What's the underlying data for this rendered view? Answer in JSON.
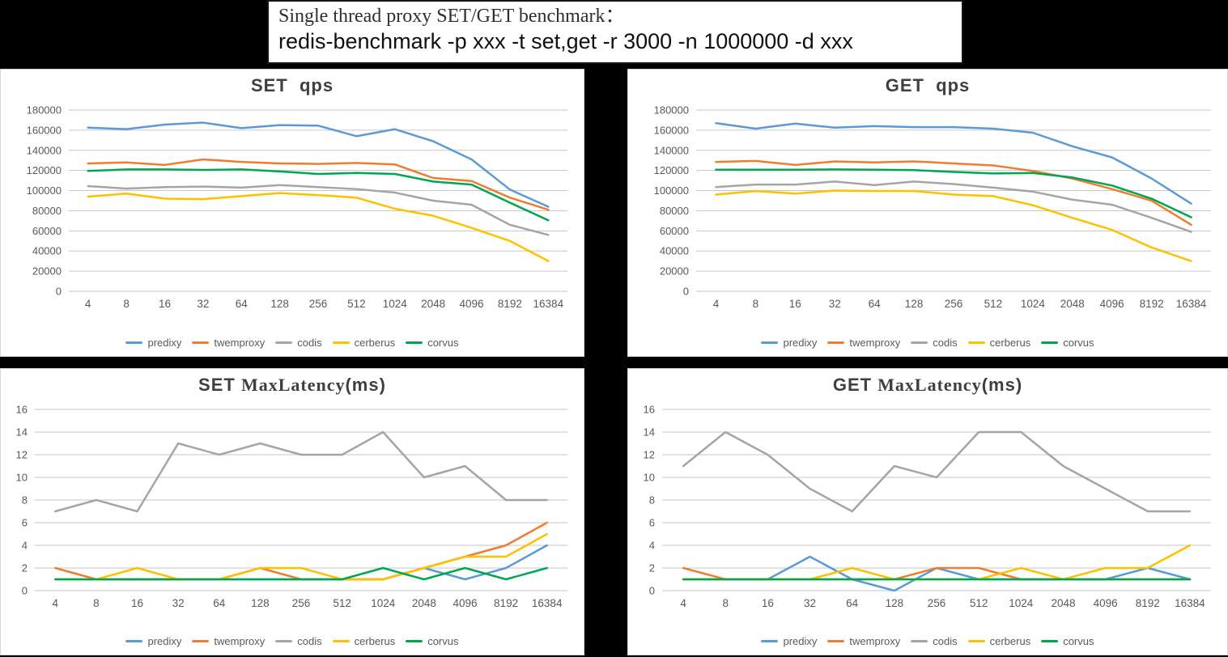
{
  "header": {
    "line1": "Single thread proxy SET/GET benchmark：",
    "line2": "redis-benchmark -p xxx -t set,get -r 3000 -n 1000000 -d xxx"
  },
  "colors": {
    "predixy": "#5B9BD5",
    "twemproxy": "#ED7D31",
    "codis": "#A5A5A5",
    "cerberus": "#FFC000",
    "corvus": "#00A651"
  },
  "style": {
    "background": "#000000",
    "panel_background": "#FFFFFF",
    "gridline_color": "#C6C6C6",
    "axis_text_color": "#595959",
    "title_color": "#3F3F3F"
  },
  "legend": [
    "predixy",
    "twemproxy",
    "codis",
    "cerberus",
    "corvus"
  ],
  "chart_data": [
    {
      "id": "set-qps",
      "type": "line",
      "title": "SET  qps",
      "title_segments": [
        {
          "text": "SET  qps",
          "font": "sans"
        }
      ],
      "xlabel": "",
      "ylabel": "",
      "ylim": [
        0,
        180000
      ],
      "ytick_step": 20000,
      "grid": true,
      "legend_position": "bottom",
      "categories": [
        "4",
        "8",
        "16",
        "32",
        "64",
        "128",
        "256",
        "512",
        "1024",
        "2048",
        "4096",
        "8192",
        "16384"
      ],
      "series": [
        {
          "name": "predixy",
          "values": [
            162500,
            161000,
            165500,
            167500,
            162000,
            165000,
            164500,
            154000,
            161000,
            149000,
            131000,
            101000,
            84000
          ]
        },
        {
          "name": "twemproxy",
          "values": [
            127000,
            128000,
            125500,
            131000,
            128500,
            127000,
            126500,
            127500,
            126000,
            112500,
            109500,
            93000,
            81000
          ]
        },
        {
          "name": "codis",
          "values": [
            104500,
            102000,
            103500,
            104000,
            103000,
            105500,
            103500,
            101500,
            98000,
            90000,
            86000,
            66000,
            56000
          ]
        },
        {
          "name": "cerberus",
          "values": [
            94000,
            97000,
            92000,
            91500,
            94500,
            97500,
            95500,
            93000,
            82000,
            75000,
            63000,
            50000,
            30000
          ]
        },
        {
          "name": "corvus",
          "values": [
            119500,
            121000,
            121000,
            120500,
            121000,
            119000,
            116500,
            117500,
            116500,
            109000,
            106000,
            88000,
            70500
          ]
        }
      ]
    },
    {
      "id": "get-qps",
      "type": "line",
      "title": "GET  qps",
      "title_segments": [
        {
          "text": "GET  qps",
          "font": "sans"
        }
      ],
      "xlabel": "",
      "ylabel": "",
      "ylim": [
        0,
        180000
      ],
      "ytick_step": 20000,
      "grid": true,
      "legend_position": "bottom",
      "categories": [
        "4",
        "8",
        "16",
        "32",
        "64",
        "128",
        "256",
        "512",
        "1024",
        "2048",
        "4096",
        "8192",
        "16384"
      ],
      "series": [
        {
          "name": "predixy",
          "values": [
            167000,
            161500,
            166500,
            162500,
            164000,
            163000,
            163000,
            161500,
            157500,
            144000,
            133000,
            112000,
            87000
          ]
        },
        {
          "name": "twemproxy",
          "values": [
            128500,
            129500,
            125500,
            129000,
            128000,
            129000,
            127000,
            125000,
            119500,
            112000,
            101500,
            90000,
            66000
          ]
        },
        {
          "name": "codis",
          "values": [
            103500,
            106000,
            106000,
            109000,
            105500,
            109000,
            106500,
            103000,
            99000,
            91000,
            86000,
            73000,
            59000
          ]
        },
        {
          "name": "cerberus",
          "values": [
            96000,
            99500,
            97000,
            100000,
            99500,
            99500,
            96000,
            94500,
            85500,
            73000,
            61000,
            43500,
            30000
          ]
        },
        {
          "name": "corvus",
          "values": [
            120700,
            120700,
            120700,
            121000,
            120700,
            120300,
            118500,
            117000,
            117500,
            113000,
            105000,
            92000,
            73500
          ]
        }
      ]
    },
    {
      "id": "set-maxlatency",
      "type": "line",
      "title": "SET MaxLatency(ms)",
      "title_segments": [
        {
          "text": "SET ",
          "font": "sans"
        },
        {
          "text": "MaxLatency",
          "font": "serif"
        },
        {
          "text": "(ms)",
          "font": "sans"
        }
      ],
      "xlabel": "",
      "ylabel": "",
      "ylim": [
        0,
        16
      ],
      "ytick_step": 2,
      "grid": true,
      "legend_position": "bottom",
      "categories": [
        "4",
        "8",
        "16",
        "32",
        "64",
        "128",
        "256",
        "512",
        "1024",
        "2048",
        "4096",
        "8192",
        "16384"
      ],
      "series": [
        {
          "name": "predixy",
          "values": [
            1,
            1,
            1,
            1,
            1,
            1,
            1,
            1,
            1,
            2,
            1,
            2,
            4
          ]
        },
        {
          "name": "twemproxy",
          "values": [
            2,
            1,
            1,
            1,
            1,
            2,
            1,
            1,
            1,
            2,
            3,
            4,
            6
          ]
        },
        {
          "name": "codis",
          "values": [
            7,
            8,
            7,
            13,
            12,
            13,
            12,
            12,
            14,
            10,
            11,
            8,
            8
          ]
        },
        {
          "name": "cerberus",
          "values": [
            1,
            1,
            2,
            1,
            1,
            2,
            2,
            1,
            1,
            2,
            3,
            3,
            5
          ]
        },
        {
          "name": "corvus",
          "values": [
            1,
            1,
            1,
            1,
            1,
            1,
            1,
            1,
            2,
            1,
            2,
            1,
            2
          ]
        }
      ]
    },
    {
      "id": "get-maxlatency",
      "type": "line",
      "title": "GET MaxLatency(ms)",
      "title_segments": [
        {
          "text": "GET ",
          "font": "sans"
        },
        {
          "text": "MaxLatency",
          "font": "serif"
        },
        {
          "text": "(ms)",
          "font": "sans"
        }
      ],
      "xlabel": "",
      "ylabel": "",
      "ylim": [
        0,
        16
      ],
      "ytick_step": 2,
      "grid": true,
      "legend_position": "bottom",
      "categories": [
        "4",
        "8",
        "16",
        "32",
        "64",
        "128",
        "256",
        "512",
        "1024",
        "2048",
        "4096",
        "8192",
        "16384"
      ],
      "series": [
        {
          "name": "predixy",
          "values": [
            1,
            1,
            1,
            3,
            1,
            0,
            2,
            1,
            1,
            1,
            1,
            2,
            1
          ]
        },
        {
          "name": "twemproxy",
          "values": [
            2,
            1,
            1,
            1,
            1,
            1,
            2,
            2,
            1,
            1,
            1,
            1,
            1
          ]
        },
        {
          "name": "codis",
          "values": [
            11,
            14,
            12,
            9,
            7,
            11,
            10,
            14,
            14,
            11,
            9,
            7,
            7
          ]
        },
        {
          "name": "cerberus",
          "values": [
            1,
            1,
            1,
            1,
            2,
            1,
            1,
            1,
            2,
            1,
            2,
            2,
            4
          ]
        },
        {
          "name": "corvus",
          "values": [
            1,
            1,
            1,
            1,
            1,
            1,
            1,
            1,
            1,
            1,
            1,
            1,
            1
          ]
        }
      ]
    }
  ]
}
